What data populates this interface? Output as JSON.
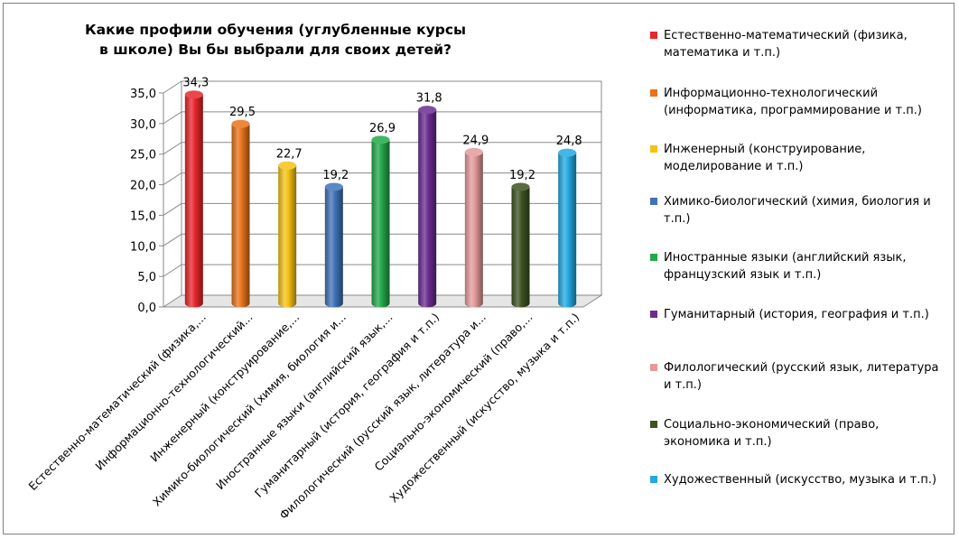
{
  "chart_data": {
    "type": "bar",
    "title_lines": [
      "Какие профили обучения (углубленные курсы",
      "в школе) Вы бы выбрали для своих детей?"
    ],
    "categories": [
      "Естественно-математический (физика,...",
      "Информационно-технологический...",
      "Инженерный (конструирование,...",
      "Химико-биологический (химия, биология и...",
      "Иностранные языки (английский язык,...",
      "Гуманитарный (история, география и т.п.)",
      "Филологический (русский язык, литература и...",
      "Социально-экономический (право,...",
      "Художественный (искусство, музыка и т.п.)"
    ],
    "values": [
      34.3,
      29.5,
      22.7,
      19.2,
      26.9,
      31.8,
      24.9,
      19.2,
      24.8
    ],
    "value_labels": [
      "34,3",
      "29,5",
      "22,7",
      "19,2",
      "26,9",
      "31,8",
      "24,9",
      "19,2",
      "24,8"
    ],
    "colors": [
      "#e8262b",
      "#e8731c",
      "#f5c216",
      "#3f72b8",
      "#23a84a",
      "#6a2c91",
      "#e49a9b",
      "#3c5320",
      "#23a9e1"
    ],
    "ylim": [
      0,
      35
    ],
    "yticks": [
      "0,0",
      "5,0",
      "10,0",
      "15,0",
      "20,0",
      "25,0",
      "30,0",
      "35,0"
    ],
    "grid": true,
    "legend_position": "right",
    "legend": [
      {
        "lines": [
          "Естественно-математический (физика,",
          "математика и т.п.)"
        ],
        "color": "#e8262b"
      },
      {
        "lines": [
          "Информационно-технологический",
          "(информатика, программирование и т.п.)"
        ],
        "color": "#e8731c"
      },
      {
        "lines": [
          "Инженерный (конструирование,",
          "моделирование и т.п.)"
        ],
        "color": "#f5c216"
      },
      {
        "lines": [
          "Химико-биологический (химия, биология и",
          "т.п.)"
        ],
        "color": "#3f72b8"
      },
      {
        "lines": [
          "Иностранные языки (английский язык,",
          "французский язык и т.п.)"
        ],
        "color": "#23a84a"
      },
      {
        "lines": [
          "Гуманитарный (история, география и т.п.)"
        ],
        "color": "#6a2c91"
      },
      {
        "lines": [
          "Филологический (русский язык, литература",
          "и т.п.)"
        ],
        "color": "#e49a9b"
      },
      {
        "lines": [
          "Социально-экономический (право,",
          "экономика и т.п.)"
        ],
        "color": "#3c5320"
      },
      {
        "lines": [
          "Художественный (искусство, музыка и т.п.)"
        ],
        "color": "#23a9e1"
      }
    ]
  }
}
